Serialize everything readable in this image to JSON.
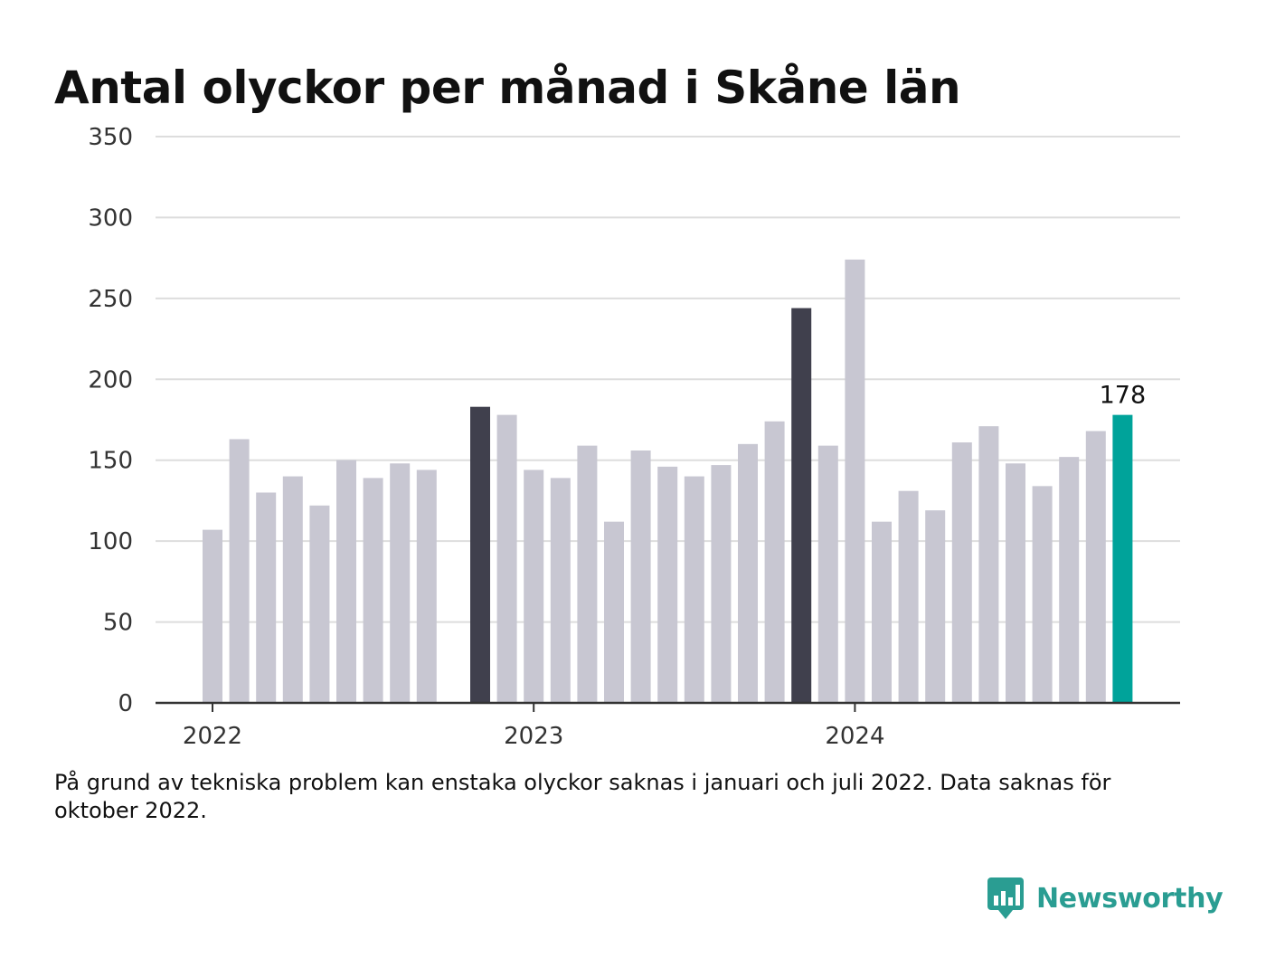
{
  "title": "Antal olyckor per månad i Skåne län",
  "note": "På grund av tekniska problem kan enstaka olyckor saknas i januari och juli 2022. Data saknas för oktober 2022.",
  "brand": {
    "name": "Newsworthy",
    "icon": "newsworthy-logo-icon"
  },
  "colors": {
    "default_bar": "#c8c7d2",
    "highlight_bar": "#40404d",
    "latest_bar": "#00a39a",
    "grid": "#dddddd",
    "axis": "#333333"
  },
  "chart_data": {
    "type": "bar",
    "title": "Antal olyckor per månad i Skåne län",
    "xlabel": "",
    "ylabel": "",
    "ylim": [
      0,
      350
    ],
    "y_ticks": [
      "0",
      "50",
      "100",
      "150",
      "200",
      "250",
      "300",
      "350"
    ],
    "x_tick_labels": [
      {
        "label": "2022",
        "category": "2022-01"
      },
      {
        "label": "2023",
        "category": "2023-01"
      },
      {
        "label": "2024",
        "category": "2024-01"
      }
    ],
    "grid": true,
    "categories": [
      "2022-01",
      "2022-02",
      "2022-03",
      "2022-04",
      "2022-05",
      "2022-06",
      "2022-07",
      "2022-08",
      "2022-09",
      "2022-10",
      "2022-11",
      "2022-12",
      "2023-01",
      "2023-02",
      "2023-03",
      "2023-04",
      "2023-05",
      "2023-06",
      "2023-07",
      "2023-08",
      "2023-09",
      "2023-10",
      "2023-11",
      "2023-12",
      "2024-01",
      "2024-02",
      "2024-03",
      "2024-04",
      "2024-05",
      "2024-06",
      "2024-07",
      "2024-08",
      "2024-09",
      "2024-10",
      "2024-11",
      "2024-12"
    ],
    "values": [
      107,
      163,
      130,
      140,
      122,
      150,
      139,
      148,
      144,
      null,
      183,
      178,
      144,
      139,
      159,
      112,
      156,
      146,
      140,
      147,
      160,
      174,
      244,
      159,
      274,
      112,
      131,
      119,
      161,
      171,
      148,
      134,
      152,
      168,
      178,
      null
    ],
    "highlight_categories": [
      "2022-11",
      "2023-11"
    ],
    "latest_category": "2024-11",
    "data_labels": [
      {
        "category": "2024-11",
        "text": "178"
      }
    ]
  }
}
